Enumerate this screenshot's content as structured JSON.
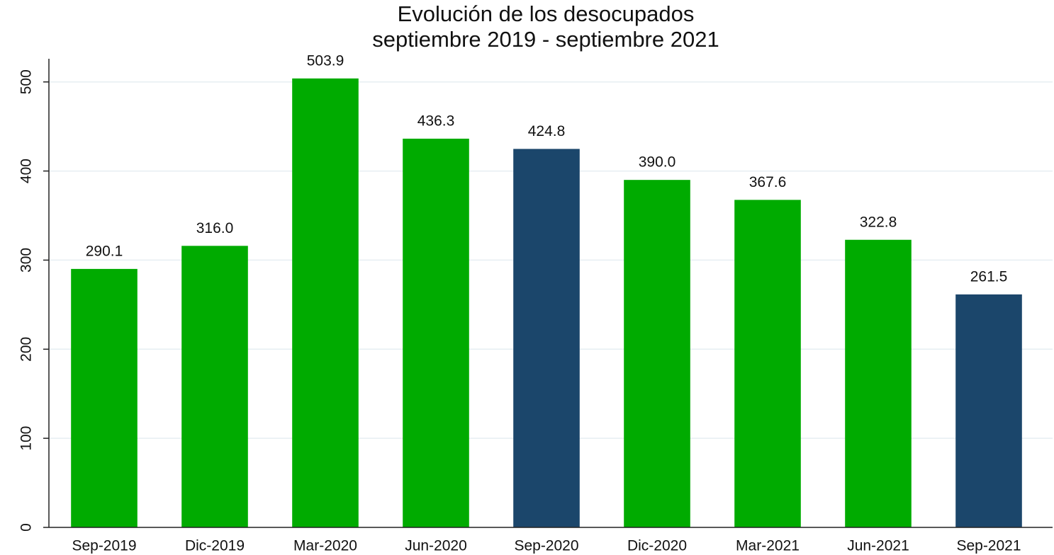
{
  "chart_data": {
    "type": "bar",
    "title": "Evolución de los desocupados",
    "subtitle": "septiembre 2019 - septiembre 2021",
    "categories": [
      "Sep-2019",
      "Dic-2019",
      "Mar-2020",
      "Jun-2020",
      "Sep-2020",
      "Dic-2020",
      "Mar-2021",
      "Jun-2021",
      "Sep-2021"
    ],
    "values": [
      290.1,
      316.0,
      503.9,
      436.3,
      424.8,
      390.0,
      367.6,
      322.8,
      261.5
    ],
    "value_labels": [
      "290.1",
      "316.0",
      "503.9",
      "436.3",
      "424.8",
      "390.0",
      "367.6",
      "322.8",
      "261.5"
    ],
    "colors": [
      "#00ab00",
      "#00ab00",
      "#00ab00",
      "#00ab00",
      "#1b466b",
      "#00ab00",
      "#00ab00",
      "#00ab00",
      "#1b466b"
    ],
    "ylim": [
      0,
      526
    ],
    "yticks": [
      0,
      100,
      200,
      300,
      400,
      500
    ],
    "grid": true
  }
}
